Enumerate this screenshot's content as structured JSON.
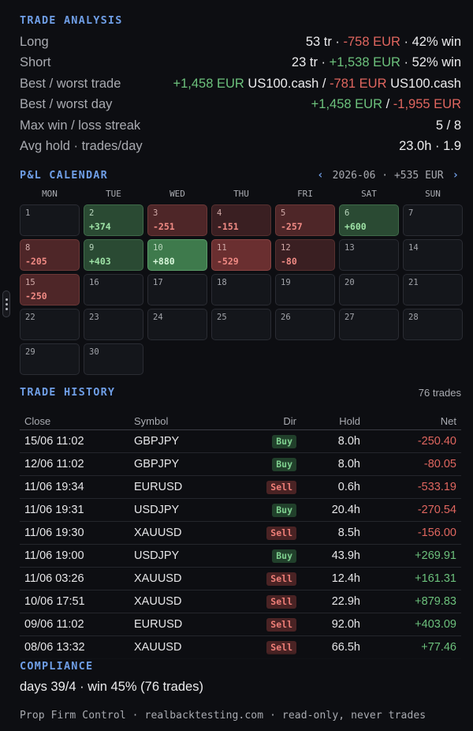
{
  "analysis": {
    "title": "TRADE ANALYSIS",
    "long": {
      "label": "Long",
      "a": "53 tr · ",
      "b": "-758 EUR",
      "c": " · 42% win"
    },
    "short": {
      "label": "Short",
      "a": "23 tr · ",
      "b": "+1,538 EUR",
      "c": " · 52% win"
    },
    "best_worst_trade": {
      "label": "Best / worst trade",
      "best": "+1,458 EUR",
      "best_sym": " US100.cash / ",
      "worst": "-781 EUR",
      "worst_sym": " US100.cash"
    },
    "best_worst_day": {
      "label": "Best / worst day",
      "best": "+1,458 EUR",
      "sep": " / ",
      "worst": "-1,955 EUR"
    },
    "streak": {
      "label": "Max win / loss streak",
      "value": "5 / 8"
    },
    "hold": {
      "label": "Avg hold · trades/day",
      "value": "23.0h · 1.9"
    }
  },
  "calendar": {
    "title": "P&L CALENDAR",
    "prev": "‹",
    "next": "›",
    "period": "2026-06 · +535 EUR",
    "weekdays": [
      "MON",
      "TUE",
      "WED",
      "THU",
      "FRI",
      "SAT",
      "SUN"
    ],
    "days": [
      {
        "d": "1",
        "pnl": "",
        "tone": ""
      },
      {
        "d": "2",
        "pnl": "+374",
        "tone": "g1"
      },
      {
        "d": "3",
        "pnl": "-251",
        "tone": "r2"
      },
      {
        "d": "4",
        "pnl": "-151",
        "tone": "r1"
      },
      {
        "d": "5",
        "pnl": "-257",
        "tone": "r2"
      },
      {
        "d": "6",
        "pnl": "+600",
        "tone": "g1"
      },
      {
        "d": "7",
        "pnl": "",
        "tone": ""
      },
      {
        "d": "8",
        "pnl": "-205",
        "tone": "r2"
      },
      {
        "d": "9",
        "pnl": "+403",
        "tone": "g1"
      },
      {
        "d": "10",
        "pnl": "+880",
        "tone": "g2"
      },
      {
        "d": "11",
        "pnl": "-529",
        "tone": "r3"
      },
      {
        "d": "12",
        "pnl": "-80",
        "tone": "r1"
      },
      {
        "d": "13",
        "pnl": "",
        "tone": ""
      },
      {
        "d": "14",
        "pnl": "",
        "tone": ""
      },
      {
        "d": "15",
        "pnl": "-250",
        "tone": "r2"
      },
      {
        "d": "16",
        "pnl": "",
        "tone": ""
      },
      {
        "d": "17",
        "pnl": "",
        "tone": ""
      },
      {
        "d": "18",
        "pnl": "",
        "tone": ""
      },
      {
        "d": "19",
        "pnl": "",
        "tone": ""
      },
      {
        "d": "20",
        "pnl": "",
        "tone": ""
      },
      {
        "d": "21",
        "pnl": "",
        "tone": ""
      },
      {
        "d": "22",
        "pnl": "",
        "tone": ""
      },
      {
        "d": "23",
        "pnl": "",
        "tone": ""
      },
      {
        "d": "24",
        "pnl": "",
        "tone": ""
      },
      {
        "d": "25",
        "pnl": "",
        "tone": ""
      },
      {
        "d": "26",
        "pnl": "",
        "tone": ""
      },
      {
        "d": "27",
        "pnl": "",
        "tone": ""
      },
      {
        "d": "28",
        "pnl": "",
        "tone": ""
      },
      {
        "d": "29",
        "pnl": "",
        "tone": ""
      },
      {
        "d": "30",
        "pnl": "",
        "tone": ""
      }
    ]
  },
  "history": {
    "title": "TRADE HISTORY",
    "count": "76 trades",
    "columns": {
      "close": "Close",
      "symbol": "Symbol",
      "dir": "Dir",
      "hold": "Hold",
      "net": "Net"
    },
    "rows": [
      {
        "close": "15/06 11:02",
        "symbol": "GBPJPY",
        "dir": "Buy",
        "hold": "8.0h",
        "net": "-250.40"
      },
      {
        "close": "12/06 11:02",
        "symbol": "GBPJPY",
        "dir": "Buy",
        "hold": "8.0h",
        "net": "-80.05"
      },
      {
        "close": "11/06 19:34",
        "symbol": "EURUSD",
        "dir": "Sell",
        "hold": "0.6h",
        "net": "-533.19"
      },
      {
        "close": "11/06 19:31",
        "symbol": "USDJPY",
        "dir": "Buy",
        "hold": "20.4h",
        "net": "-270.54"
      },
      {
        "close": "11/06 19:30",
        "symbol": "XAUUSD",
        "dir": "Sell",
        "hold": "8.5h",
        "net": "-156.00"
      },
      {
        "close": "11/06 19:00",
        "symbol": "USDJPY",
        "dir": "Buy",
        "hold": "43.9h",
        "net": "+269.91"
      },
      {
        "close": "11/06 03:26",
        "symbol": "XAUUSD",
        "dir": "Sell",
        "hold": "12.4h",
        "net": "+161.31"
      },
      {
        "close": "10/06 17:51",
        "symbol": "XAUUSD",
        "dir": "Sell",
        "hold": "22.9h",
        "net": "+879.83"
      },
      {
        "close": "09/06 11:02",
        "symbol": "EURUSD",
        "dir": "Sell",
        "hold": "92.0h",
        "net": "+403.09"
      },
      {
        "close": "08/06 13:32",
        "symbol": "XAUUSD",
        "dir": "Sell",
        "hold": "66.5h",
        "net": "+77.46"
      }
    ]
  },
  "compliance": {
    "title": "COMPLIANCE",
    "text": "days 39/4 · win 45% (76 trades)"
  },
  "footer": "Prop Firm Control · realbacktesting.com · read-only, never trades"
}
